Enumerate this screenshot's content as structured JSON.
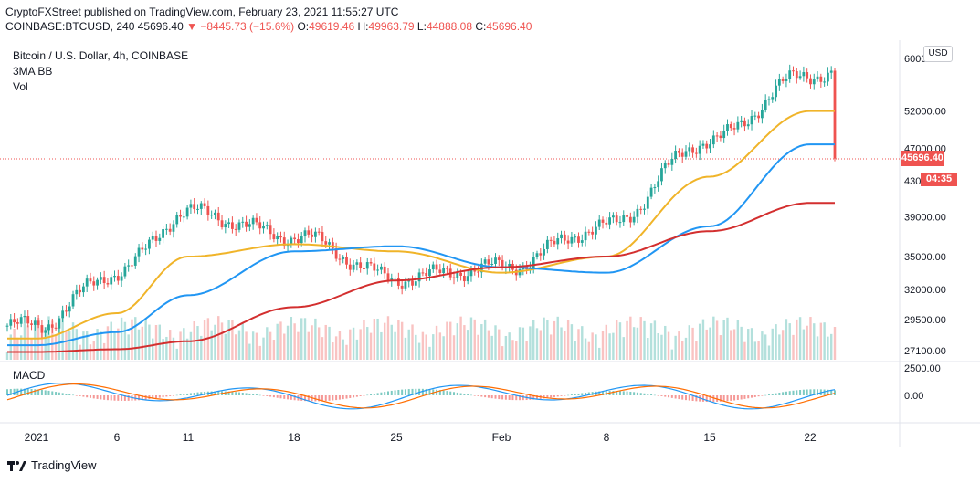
{
  "header": {
    "line1": "CryptoFXStreet published on TradingView.com, February 23, 2021 11:55:27 UTC",
    "symbol": "COINBASE:BTCUSD, 240",
    "last": "45696.40",
    "change": "▼ −8445.73 (−15.6%)",
    "o_label": "O:",
    "o": "49619.46",
    "h_label": "H:",
    "h": "49963.79",
    "l_label": "L:",
    "l": "44888.08",
    "c_label": "C:",
    "c": "45696.40"
  },
  "legend": {
    "title": "Bitcoin / U.S. Dollar, 4h, COINBASE",
    "indicator": "3MA BB",
    "volume": "Vol",
    "macd": "MACD"
  },
  "price_axis": {
    "currency_button": "USD",
    "current_price": "45696.40",
    "countdown": "04:35",
    "labels": [
      "60000.00",
      "52000.00",
      "47000.00",
      "43000.00",
      "39000.00",
      "35000.00",
      "32000.00",
      "29500.00",
      "27100.00"
    ]
  },
  "macd_axis": {
    "labels": [
      "2500.00",
      "0.00"
    ]
  },
  "time_axis": {
    "labels": [
      "2021",
      "6",
      "11",
      "18",
      "25",
      "Feb",
      "8",
      "15",
      "22"
    ]
  },
  "brand": {
    "name": "TradingView"
  },
  "colors": {
    "up": "#26a69a",
    "down": "#ef5350",
    "ma_short": "#f0b429",
    "ma_mid": "#2196f3",
    "ma_long": "#d32f2f",
    "macd_line": "#2196f3",
    "signal_line": "#ff6d00"
  },
  "chart_data": {
    "type": "line",
    "title": "Bitcoin / U.S. Dollar, 4h, COINBASE",
    "x": [
      "2021",
      "6",
      "11",
      "18",
      "25",
      "Feb",
      "8",
      "15",
      "22"
    ],
    "series": [
      {
        "name": "",
        "values": [
          29000,
          33500,
          39500,
          37000,
          33000,
          34000,
          38000,
          48000,
          57500
        ]
      },
      {
        "name": "",
        "values": [
          28000,
          30000,
          35000,
          36200,
          35500,
          33500,
          35000,
          43500,
          52000
        ]
      },
      {
        "name": "",
        "values": [
          27500,
          28500,
          31500,
          35500,
          36000,
          34000,
          33500,
          38000,
          47500
        ]
      },
      {
        "name": "",
        "values": [
          27000,
          27200,
          27800,
          30500,
          32800,
          34000,
          35000,
          37500,
          40500
        ]
      }
    ],
    "current": 45696.4,
    "scale": "log",
    "grid": false,
    "legend": "top-left"
  }
}
